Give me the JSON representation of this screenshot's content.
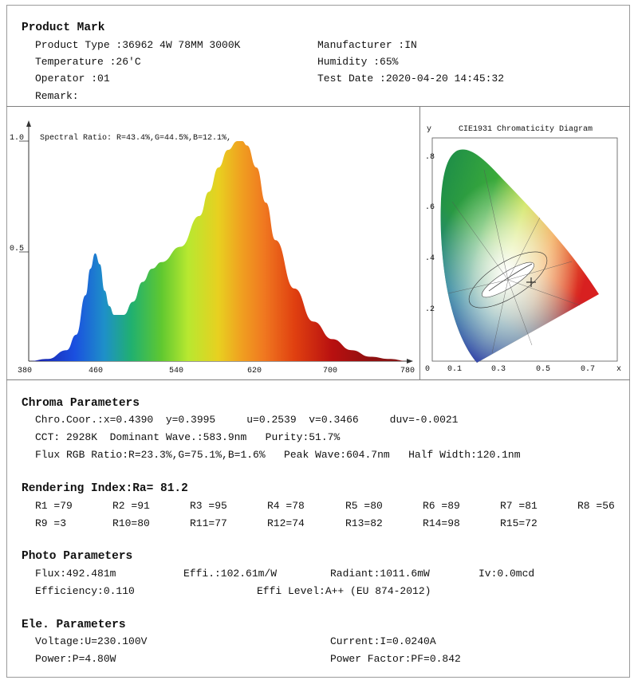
{
  "product_mark": {
    "title": "Product Mark",
    "product_type": "Product Type :36962 4W 78MM 3000K",
    "manufacturer": "Manufacturer :IN",
    "temperature": "Temperature :26'C",
    "humidity": "Humidity :65%",
    "operator": "Operator :01",
    "test_date": "Test Date :2020-04-20 14:45:32",
    "remark": "Remark:"
  },
  "spectrum_chart": {
    "ratio_text": "Spectral Ratio:  R=43.4%,G=44.5%,B=12.1%,",
    "y_ticks": [
      "1.0",
      "0.5"
    ],
    "x_ticks": [
      "380",
      "460",
      "540",
      "620",
      "700",
      "780"
    ]
  },
  "cie_chart": {
    "title": "CIE1931 Chromaticity Diagram",
    "y_axis": "y",
    "x_axis": "x",
    "y_ticks": [
      ".8",
      ".6",
      ".4",
      ".2",
      "0"
    ],
    "x_ticks": [
      "0.1",
      "0.3",
      "0.5",
      "0.7"
    ]
  },
  "chroma": {
    "title": "Chroma Parameters",
    "line1": "Chro.Coor.:x=0.4390  y=0.3995     u=0.2539  v=0.3466     duv=-0.0021",
    "line2": "CCT: 2928K  Dominant Wave.:583.9nm   Purity:51.7%",
    "line3": "Flux RGB Ratio:R=23.3%,G=75.1%,B=1.6%   Peak Wave:604.7nm   Half Width:120.1nm"
  },
  "rendering": {
    "title": "Rendering Index:Ra= 81.2",
    "row1": [
      "R1 =79",
      "R2 =91",
      "R3 =95",
      "R4 =78",
      "R5 =80",
      "R6 =89",
      "R7 =81",
      "R8 =56"
    ],
    "row2": [
      "R9 =3",
      "R10=80",
      "R11=77",
      "R12=74",
      "R13=82",
      "R14=98",
      "R15=72"
    ]
  },
  "photo": {
    "title": "Photo Parameters",
    "flux": "Flux:492.481m",
    "effi": "Effi.:102.61m/W",
    "radiant": "Radiant:1011.6mW",
    "iv": "Iv:0.0mcd",
    "efficiency": "Efficiency:0.110",
    "effi_level": "Effi Level:A++ (EU 874-2012)"
  },
  "ele": {
    "title": "Ele. Parameters",
    "voltage": "Voltage:U=230.100V",
    "current": "Current:I=0.0240A",
    "power": "Power:P=4.80W",
    "power_factor": "Power Factor:PF=0.842"
  },
  "chart_data": {
    "type": "area",
    "x_unit": "nm",
    "xlim": [
      380,
      780
    ],
    "ylim": [
      0,
      1.0
    ],
    "x": [
      380,
      400,
      420,
      430,
      440,
      445,
      450,
      455,
      460,
      465,
      470,
      480,
      490,
      500,
      510,
      520,
      540,
      560,
      570,
      580,
      590,
      600,
      605,
      610,
      620,
      630,
      640,
      660,
      680,
      700,
      720,
      740,
      760,
      780
    ],
    "y": [
      0.0,
      0.01,
      0.05,
      0.12,
      0.3,
      0.42,
      0.49,
      0.44,
      0.32,
      0.25,
      0.21,
      0.21,
      0.27,
      0.36,
      0.42,
      0.45,
      0.52,
      0.66,
      0.77,
      0.88,
      0.96,
      1.0,
      1.0,
      0.98,
      0.88,
      0.72,
      0.55,
      0.33,
      0.18,
      0.1,
      0.05,
      0.02,
      0.01,
      0.0
    ]
  }
}
